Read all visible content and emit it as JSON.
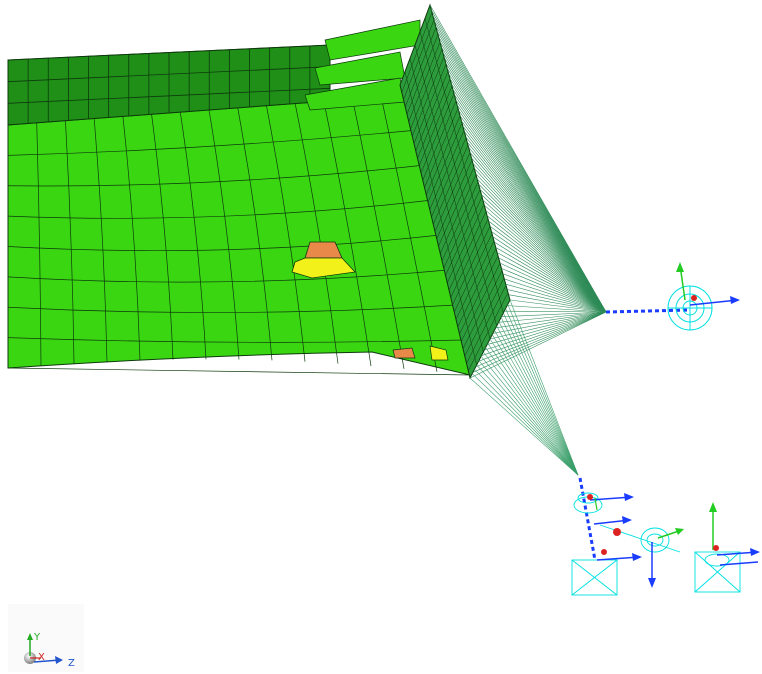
{
  "viewport": {
    "name": "fe-model-graphics-area",
    "colors": {
      "background": "#ffffff",
      "shell_mesh": "#33dd11",
      "shell_mesh_dark": "#1e8f14",
      "solid_block": "#2a9a3a",
      "rbe_spider": "#2e8b57",
      "rbe_spider_2": "#3a9f6a",
      "hot_element_orange": "#e8894a",
      "hot_element_yellow": "#f2f21a",
      "coord_system": "#00e0e0",
      "axis_blue": "#1a3cff",
      "axis_green": "#22cc22",
      "axis_red": "#dd2222",
      "mesh_line": "#1a1a1a"
    }
  },
  "triad": {
    "y_label": "Y",
    "x_label": "X",
    "z_label": "Z",
    "colors": {
      "y": "#22aa22",
      "x": "#cc2222",
      "z": "#2255cc"
    }
  }
}
